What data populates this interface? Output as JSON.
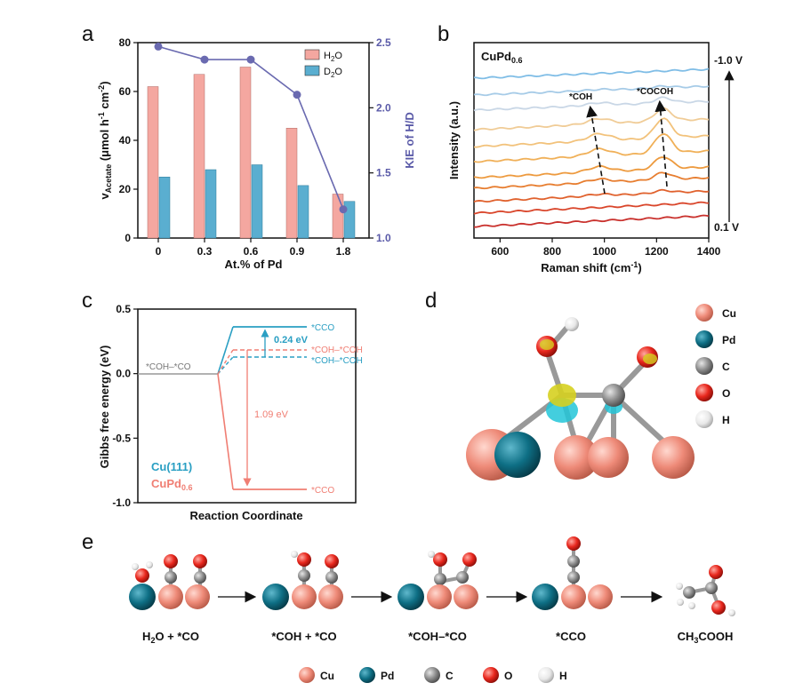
{
  "panels": {
    "a": {
      "letter": "a",
      "ylabel_main": "v",
      "ylabel_sub": "Acetate",
      "ylabel_units": " (μmol h",
      "ylabel_exp1": "-1",
      "ylabel_mid": " cm",
      "ylabel_exp2": "-2",
      "ylabel_end": ")",
      "y2label": "KIE of H/D",
      "xlabel": "At.% of Pd",
      "legend": {
        "h2o": {
          "a": "H",
          "sub": "2",
          "b": "O"
        },
        "d2o": {
          "a": "D",
          "sub": "2",
          "b": "O"
        }
      }
    },
    "b": {
      "letter": "b",
      "sample": {
        "main": "CuPd",
        "sub": "0.6"
      },
      "ylabel": "Intensity (a.u.)",
      "xlabel": {
        "main": "Raman shift (cm",
        "exp": "-1",
        "end": ")"
      },
      "top_potential": "-1.0 V",
      "bottom_potential": "0.1 V",
      "peak1": "*COH",
      "peak2": "*COCOH"
    },
    "c": {
      "letter": "c",
      "ylabel": "Gibbs free energy (eV)",
      "xlabel": "Reaction Coordinate",
      "initial_label": "*COH–*CO",
      "cu_cco": "*CCO",
      "cu_cohcoh": "*COH–*COH",
      "pd_cohcoh": "*COH–*COH",
      "pd_cco": "*CCO",
      "barrier_cu": "0.24 eV",
      "barrier_pd": "1.09 eV",
      "legend_cu": "Cu(111)",
      "legend_pd": {
        "main": "CuPd",
        "sub": "0.6"
      }
    },
    "d": {
      "letter": "d",
      "legend": [
        "Cu",
        "Pd",
        "C",
        "O",
        "H"
      ]
    },
    "e": {
      "letter": "e",
      "steps": [
        {
          "parts": [
            {
              "t": "H"
            },
            {
              "t": "2",
              "sub": true
            },
            {
              "t": "O + *CO"
            }
          ]
        },
        {
          "parts": [
            {
              "t": "*COH + *CO"
            }
          ]
        },
        {
          "parts": [
            {
              "t": "*COH–*CO"
            }
          ]
        },
        {
          "parts": [
            {
              "t": "*CCO"
            }
          ]
        },
        {
          "parts": [
            {
              "t": "CH"
            },
            {
              "t": "3",
              "sub": true
            },
            {
              "t": "COOH"
            }
          ]
        }
      ],
      "legend": [
        "Cu",
        "Pd",
        "C",
        "O",
        "H"
      ]
    }
  },
  "colors": {
    "cu": "#ee8a78",
    "pd": "#0e6f85",
    "c": "#8c8c8c",
    "o": "#e8271d",
    "h": "#eeeeee",
    "h2o_bar": "#f4a7a0",
    "d2o_bar": "#5aaed0",
    "kie_line": "#6a6ab0",
    "cu111": "#2a9fc3",
    "cupd": "#f07e73",
    "gray": "#999999"
  },
  "chart_data": [
    {
      "type": "bar",
      "panel": "a",
      "categories": [
        "0",
        "0.3",
        "0.6",
        "0.9",
        "1.8"
      ],
      "series": [
        {
          "name": "H2O",
          "values": [
            62,
            67,
            70,
            45,
            18
          ]
        },
        {
          "name": "D2O",
          "values": [
            25,
            28,
            30,
            21.5,
            15
          ]
        },
        {
          "name": "KIE of H/D",
          "axis": "right",
          "values": [
            2.47,
            2.37,
            2.37,
            2.1,
            1.22
          ]
        }
      ],
      "ylim": [
        0,
        80
      ],
      "yticks": [
        0,
        20,
        40,
        60,
        80
      ],
      "y2lim": [
        1.0,
        2.5
      ],
      "y2ticks": [
        "1.0",
        "1.5",
        "2.0",
        "2.5"
      ],
      "legend_position": "top-right"
    },
    {
      "type": "line",
      "panel": "b",
      "xlim": [
        500,
        1400
      ],
      "xticks": [
        600,
        800,
        1000,
        1200,
        1400
      ],
      "series_colors": [
        "#c9302c",
        "#d9452a",
        "#e0612d",
        "#e77d2f",
        "#ed9a3e",
        "#f0b058",
        "#f2c27b",
        "#f0cc97",
        "#c9d7e6",
        "#a6cbe7",
        "#7fbde6"
      ]
    },
    {
      "type": "line",
      "panel": "c",
      "ylim": [
        -1.0,
        0.5
      ],
      "yticks": [
        "-1.0",
        "-0.5",
        "0.0",
        "0.5"
      ],
      "series": [
        {
          "name": "Cu(111)",
          "states": {
            "*COH–*CO": 0.0,
            "*CCO": 0.37,
            "*COH–*COH": 0.13
          }
        },
        {
          "name": "CuPd0.6",
          "states": {
            "*COH–*CO": 0.0,
            "*COH–*COH": 0.19,
            "*CCO": -0.9
          }
        }
      ]
    }
  ]
}
